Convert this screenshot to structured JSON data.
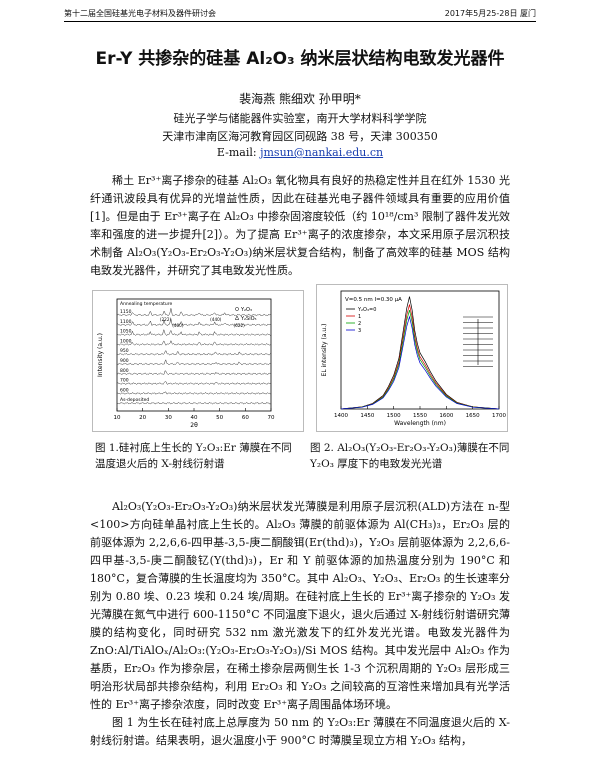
{
  "header": {
    "left": "第十二届全国硅基光电子材料及器件研讨会",
    "right": "2017年5月25-28日  厦门"
  },
  "title": "Er-Y 共掺杂的硅基 Al₂O₃ 纳米层状结构电致发光器件",
  "authors": "裴海燕  熊细欢  孙甲明*",
  "affiliation": {
    "lab": "硅光子学与储能器件实验室，南开大学材料科学学院",
    "address": "天津市津南区海河教育园区同砚路 38 号，天津 300350",
    "email_label": "E-mail: ",
    "email": "jmsun@nankai.edu.cn"
  },
  "paragraphs": {
    "intro": "稀土 Er³⁺离子掺杂的硅基 Al₂O₃ 氧化物具有良好的热稳定性并且在红外 1530 光纤通讯波段具有优异的光增益性质，因此在硅基光电子器件领域具有重要的应用价值[1]。但是由于 Er³⁺离子在 Al₂O₃ 中掺杂固溶度较低（约 10¹⁸/cm³ 限制了器件发光效率和强度的进一步提升[2]）。为了提高 Er³⁺离子的浓度掺杂，本文采用原子层沉积技术制备 Al₂O₃(Y₂O₃-Er₂O₃-Y₂O₃)纳米层状复合结构，制备了高效率的硅基 MOS 结构电致发光器件，并研究了其电致发光性质。",
    "method": "Al₂O₃(Y₂O₃-Er₂O₃-Y₂O₃)纳米层状发光薄膜是利用原子层沉积(ALD)方法在 n-型<100>方向硅单晶衬底上生长的。Al₂O₃ 薄膜的前驱体源为 Al(CH₃)₃，Er₂O₃ 层的前驱体源为 2,2,6,6-四甲基-3,5-庚二酮酸铒(Er(thd)₃)，Y₂O₃ 层前驱体源为 2,2,6,6-四甲基-3,5-庚二酮酸钇(Y(thd)₃)，Er 和 Y 前驱体源的加热温度分别为 190°C 和 180°C，复合薄膜的生长温度均为 350°C。其中 Al₂O₃、Y₂O₃、Er₂O₃ 的生长速率分别为 0.80 埃、0.23 埃和 0.24 埃/周期。在硅衬底上生长的 Er³⁺离子掺杂的 Y₂O₃ 发光薄膜在氮气中进行 600-1150°C 不同温度下退火，退火后通过 X-射线衍射谱研究薄膜的结构变化，同时研究 532 nm 激光激发下的红外发光光谱。电致发光器件为 ZnO:Al/TiAlOₓ/Al₂O₃:(Y₂O₃-Er₂O₃-Y₂O₃)/Si MOS 结构。其中发光层中 Al₂O₃ 作为基质，Er₂O₃ 作为掺杂层，在稀土掺杂层两侧生长 1-3 个沉积周期的 Y₂O₃ 层形成三明治形状局部共掺杂结构，利用 Er₂O₃ 和 Y₂O₃ 之间较高的互溶性来增加具有光学活性的 Er³⁺离子掺杂浓度，同时改变 Er³⁺离子周围晶体场环境。",
    "results": "图 1 为生长在硅衬底上总厚度为 50 nm 的 Y₂O₃:Er 薄膜在不同温度退火后的 X-射线衍射谱。结果表明，退火温度小于 900°C 时薄膜呈现立方相 Y₂O₃ 结构，"
  },
  "figures": {
    "fig1_caption": "图 1.硅衬底上生长的 Y₂O₃:Er 薄膜在不同温度退火后的 X-射线衍射谱",
    "fig2_caption": "图 2. Al₂O₃(Y₂O₃-Er₂O₃-Y₂O₃)薄膜在不同 Y₂O₃ 厚度下的电致发光光谱"
  },
  "chart_data": [
    {
      "type": "line",
      "title": "",
      "xlabel": "2θ",
      "ylabel": "Intensity (a.u.)",
      "xlim": [
        10,
        70
      ],
      "xticks": [
        10,
        20,
        30,
        40,
        50,
        60,
        70
      ],
      "legend": [
        "Y₂O₃",
        "Y₂SiO₅"
      ],
      "legend_position": "top-right",
      "top_label": "Annealing temperature",
      "series_labels": [
        "1150",
        "1100",
        "1050",
        "1000",
        "950",
        "900",
        "800",
        "700",
        "600",
        "As-deposited"
      ],
      "peak_labels": [
        "(222)",
        "(400)",
        "(440)",
        "(622)"
      ],
      "series_peaks": [
        [
          [
            16,
            0.5
          ],
          [
            23,
            0.6
          ],
          [
            28.3,
            0.7
          ],
          [
            31,
            1.0
          ],
          [
            35,
            0.5
          ],
          [
            42,
            0.45
          ],
          [
            48,
            0.5
          ],
          [
            52,
            0.4
          ]
        ],
        [
          [
            16,
            0.5
          ],
          [
            23,
            0.6
          ],
          [
            28.3,
            0.7
          ],
          [
            31,
            0.9
          ],
          [
            35,
            0.5
          ],
          [
            42,
            0.45
          ],
          [
            48,
            0.5
          ],
          [
            52,
            0.4
          ]
        ],
        [
          [
            16,
            0.4
          ],
          [
            23,
            0.5
          ],
          [
            28.3,
            0.7
          ],
          [
            31,
            0.8
          ],
          [
            35,
            0.45
          ],
          [
            42,
            0.4
          ],
          [
            48,
            0.45
          ]
        ],
        [
          [
            16,
            0.3
          ],
          [
            28.3,
            0.6
          ],
          [
            31,
            0.7
          ],
          [
            42,
            0.35
          ],
          [
            48,
            0.4
          ]
        ],
        [
          [
            28.9,
            0.7
          ],
          [
            33.7,
            0.35
          ],
          [
            48.5,
            0.4
          ],
          [
            57.6,
            0.3
          ]
        ],
        [
          [
            28.9,
            0.6
          ],
          [
            33.7,
            0.3
          ],
          [
            48.5,
            0.35
          ],
          [
            57.6,
            0.25
          ]
        ],
        [
          [
            28.9,
            0.45
          ],
          [
            48.5,
            0.25
          ]
        ],
        [
          [
            28.9,
            0.35
          ],
          [
            48.5,
            0.2
          ]
        ],
        [
          [
            28.9,
            0.25
          ]
        ],
        []
      ]
    },
    {
      "type": "line",
      "title": "",
      "xlabel": "Wavelength (nm)",
      "ylabel": "EL intensity (a.u.)",
      "xlim": [
        1400,
        1700
      ],
      "ylim": [
        0,
        1.05
      ],
      "xticks": [
        1400,
        1450,
        1500,
        1550,
        1600,
        1650,
        1700
      ],
      "annotation": "V=0.5 nm  I=0.30 μA",
      "legend_position": "top-left",
      "series": [
        {
          "name": "Y₂O₃=0",
          "color": "#000000"
        },
        {
          "name": "1",
          "color": "#d40000"
        },
        {
          "name": "2",
          "color": "#00a000"
        },
        {
          "name": "3",
          "color": "#0000d0"
        }
      ],
      "x": [
        1400,
        1440,
        1460,
        1480,
        1490,
        1500,
        1510,
        1520,
        1525,
        1530,
        1535,
        1540,
        1545,
        1550,
        1560,
        1570,
        1580,
        1600,
        1620,
        1650,
        1700
      ],
      "y": [
        0.0,
        0.02,
        0.05,
        0.12,
        0.2,
        0.3,
        0.45,
        0.75,
        0.9,
        1.0,
        0.88,
        0.7,
        0.58,
        0.5,
        0.42,
        0.33,
        0.25,
        0.13,
        0.06,
        0.02,
        0.0
      ],
      "series_scale": [
        1.0,
        0.93,
        0.88,
        0.82
      ],
      "inset_type": "energy level diagram"
    }
  ]
}
